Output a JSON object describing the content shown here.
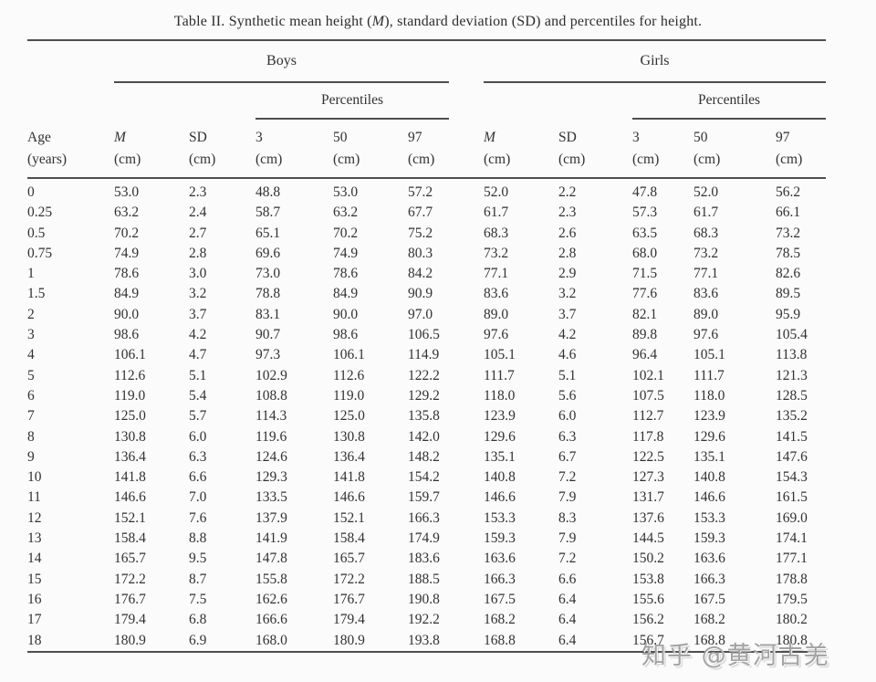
{
  "title": {
    "part1": "Table II. Synthetic mean height (",
    "part2": "M",
    "part3": "), standard deviation (SD) and percentiles for height."
  },
  "table": {
    "group_headers": {
      "boys": "Boys",
      "girls": "Girls"
    },
    "percentiles_label": "Percentiles",
    "col_headers": {
      "age_line1": "Age",
      "age_line2": "(years)",
      "m": "M",
      "sd": "SD",
      "p3": "3",
      "p50": "50",
      "p97": "97",
      "unit": "(cm)"
    },
    "rows": [
      {
        "age": "0",
        "boys": [
          "53.0",
          "2.3",
          "48.8",
          "53.0",
          "57.2"
        ],
        "girls": [
          "52.0",
          "2.2",
          "47.8",
          "52.0",
          "56.2"
        ]
      },
      {
        "age": "0.25",
        "boys": [
          "63.2",
          "2.4",
          "58.7",
          "63.2",
          "67.7"
        ],
        "girls": [
          "61.7",
          "2.3",
          "57.3",
          "61.7",
          "66.1"
        ]
      },
      {
        "age": "0.5",
        "boys": [
          "70.2",
          "2.7",
          "65.1",
          "70.2",
          "75.2"
        ],
        "girls": [
          "68.3",
          "2.6",
          "63.5",
          "68.3",
          "73.2"
        ]
      },
      {
        "age": "0.75",
        "boys": [
          "74.9",
          "2.8",
          "69.6",
          "74.9",
          "80.3"
        ],
        "girls": [
          "73.2",
          "2.8",
          "68.0",
          "73.2",
          "78.5"
        ]
      },
      {
        "age": "1",
        "boys": [
          "78.6",
          "3.0",
          "73.0",
          "78.6",
          "84.2"
        ],
        "girls": [
          "77.1",
          "2.9",
          "71.5",
          "77.1",
          "82.6"
        ]
      },
      {
        "age": "1.5",
        "boys": [
          "84.9",
          "3.2",
          "78.8",
          "84.9",
          "90.9"
        ],
        "girls": [
          "83.6",
          "3.2",
          "77.6",
          "83.6",
          "89.5"
        ]
      },
      {
        "age": "2",
        "boys": [
          "90.0",
          "3.7",
          "83.1",
          "90.0",
          "97.0"
        ],
        "girls": [
          "89.0",
          "3.7",
          "82.1",
          "89.0",
          "95.9"
        ]
      },
      {
        "age": "3",
        "boys": [
          "98.6",
          "4.2",
          "90.7",
          "98.6",
          "106.5"
        ],
        "girls": [
          "97.6",
          "4.2",
          "89.8",
          "97.6",
          "105.4"
        ]
      },
      {
        "age": "4",
        "boys": [
          "106.1",
          "4.7",
          "97.3",
          "106.1",
          "114.9"
        ],
        "girls": [
          "105.1",
          "4.6",
          "96.4",
          "105.1",
          "113.8"
        ]
      },
      {
        "age": "5",
        "boys": [
          "112.6",
          "5.1",
          "102.9",
          "112.6",
          "122.2"
        ],
        "girls": [
          "111.7",
          "5.1",
          "102.1",
          "111.7",
          "121.3"
        ]
      },
      {
        "age": "6",
        "boys": [
          "119.0",
          "5.4",
          "108.8",
          "119.0",
          "129.2"
        ],
        "girls": [
          "118.0",
          "5.6",
          "107.5",
          "118.0",
          "128.5"
        ]
      },
      {
        "age": "7",
        "boys": [
          "125.0",
          "5.7",
          "114.3",
          "125.0",
          "135.8"
        ],
        "girls": [
          "123.9",
          "6.0",
          "112.7",
          "123.9",
          "135.2"
        ]
      },
      {
        "age": "8",
        "boys": [
          "130.8",
          "6.0",
          "119.6",
          "130.8",
          "142.0"
        ],
        "girls": [
          "129.6",
          "6.3",
          "117.8",
          "129.6",
          "141.5"
        ]
      },
      {
        "age": "9",
        "boys": [
          "136.4",
          "6.3",
          "124.6",
          "136.4",
          "148.2"
        ],
        "girls": [
          "135.1",
          "6.7",
          "122.5",
          "135.1",
          "147.6"
        ]
      },
      {
        "age": "10",
        "boys": [
          "141.8",
          "6.6",
          "129.3",
          "141.8",
          "154.2"
        ],
        "girls": [
          "140.8",
          "7.2",
          "127.3",
          "140.8",
          "154.3"
        ]
      },
      {
        "age": "11",
        "boys": [
          "146.6",
          "7.0",
          "133.5",
          "146.6",
          "159.7"
        ],
        "girls": [
          "146.6",
          "7.9",
          "131.7",
          "146.6",
          "161.5"
        ]
      },
      {
        "age": "12",
        "boys": [
          "152.1",
          "7.6",
          "137.9",
          "152.1",
          "166.3"
        ],
        "girls": [
          "153.3",
          "8.3",
          "137.6",
          "153.3",
          "169.0"
        ]
      },
      {
        "age": "13",
        "boys": [
          "158.4",
          "8.8",
          "141.9",
          "158.4",
          "174.9"
        ],
        "girls": [
          "159.3",
          "7.9",
          "144.5",
          "159.3",
          "174.1"
        ]
      },
      {
        "age": "14",
        "boys": [
          "165.7",
          "9.5",
          "147.8",
          "165.7",
          "183.6"
        ],
        "girls": [
          "163.6",
          "7.2",
          "150.2",
          "163.6",
          "177.1"
        ]
      },
      {
        "age": "15",
        "boys": [
          "172.2",
          "8.7",
          "155.8",
          "172.2",
          "188.5"
        ],
        "girls": [
          "166.3",
          "6.6",
          "153.8",
          "166.3",
          "178.8"
        ]
      },
      {
        "age": "16",
        "boys": [
          "176.7",
          "7.5",
          "162.6",
          "176.7",
          "190.8"
        ],
        "girls": [
          "167.5",
          "6.4",
          "155.6",
          "167.5",
          "179.5"
        ]
      },
      {
        "age": "17",
        "boys": [
          "179.4",
          "6.8",
          "166.6",
          "179.4",
          "192.2"
        ],
        "girls": [
          "168.2",
          "6.4",
          "156.2",
          "168.2",
          "180.2"
        ]
      },
      {
        "age": "18",
        "boys": [
          "180.9",
          "6.9",
          "168.0",
          "180.9",
          "193.8"
        ],
        "girls": [
          "168.8",
          "6.4",
          "156.7",
          "168.8",
          "180.8"
        ]
      }
    ]
  },
  "watermark": {
    "text": "知乎 @黄河古羌"
  }
}
